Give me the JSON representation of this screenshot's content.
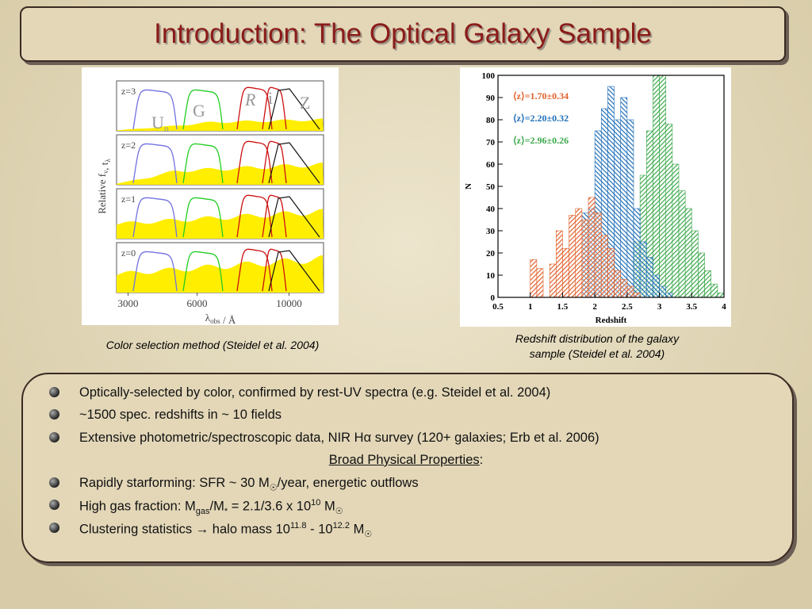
{
  "title": "Introduction: The Optical Galaxy Sample",
  "left_figure": {
    "panel_labels": [
      "z=3",
      "z=2",
      "z=1",
      "z=0"
    ],
    "filter_labels": [
      {
        "t": "U",
        "sub": "n"
      },
      {
        "t": "G"
      },
      {
        "t": "R"
      },
      {
        "t": "i"
      },
      {
        "t": "Z"
      }
    ],
    "y_label": [
      {
        "t": "Relative f"
      },
      {
        "sub": "ν"
      },
      {
        "t": ", t"
      },
      {
        "sub": "λ"
      }
    ],
    "x_label": [
      {
        "t": "λ"
      },
      {
        "sub": "obs"
      },
      {
        "t": " / Å"
      }
    ],
    "xticks": [
      3000,
      6000,
      10000
    ],
    "caption": "Color selection method (Steidel et al. 2004)"
  },
  "right_figure": {
    "type": "histogram",
    "x_label": "Redshift",
    "y_label": "N",
    "xlim": [
      0.5,
      4
    ],
    "ylim": [
      0,
      100
    ],
    "xticks": [
      0.5,
      1,
      1.5,
      2,
      2.5,
      3,
      3.5,
      4
    ],
    "yticks": [
      0,
      10,
      20,
      30,
      40,
      50,
      60,
      70,
      80,
      90,
      100
    ],
    "bins": [
      1,
      1.1,
      1.2,
      1.3,
      1.4,
      1.5,
      1.6,
      1.7,
      1.8,
      1.9,
      2,
      2.1,
      2.2,
      2.3,
      2.4,
      2.5,
      2.6,
      2.7,
      2.8,
      2.9,
      3,
      3.1,
      3.2,
      3.3,
      3.4,
      3.5,
      3.6,
      3.7,
      3.8,
      3.9,
      4
    ],
    "series": [
      {
        "name": "⟨z⟩=1.70±0.34",
        "color": "#e0602a",
        "values": [
          17,
          13,
          0,
          15,
          30,
          22,
          37,
          40,
          35,
          45,
          38,
          28,
          22,
          12,
          8,
          5,
          2,
          0,
          0,
          0,
          0,
          0,
          0,
          0,
          0,
          0,
          0,
          0,
          0,
          0
        ]
      },
      {
        "name": "⟨z⟩=2.20±0.32",
        "color": "#1f6fb8",
        "values": [
          0,
          0,
          0,
          0,
          0,
          0,
          0,
          0,
          38,
          40,
          75,
          85,
          95,
          80,
          90,
          80,
          40,
          25,
          18,
          10,
          5,
          2,
          0,
          0,
          0,
          0,
          0,
          0,
          0,
          0
        ]
      },
      {
        "name": "⟨z⟩=2.96±0.26",
        "color": "#3aa84a",
        "values": [
          0,
          0,
          0,
          0,
          0,
          0,
          0,
          0,
          0,
          0,
          0,
          0,
          0,
          0,
          0,
          0,
          25,
          55,
          75,
          100,
          100,
          78,
          60,
          48,
          40,
          30,
          20,
          12,
          6,
          2
        ]
      }
    ],
    "caption": [
      "Redshift distribution of the galaxy",
      "sample (Steidel et al. 2004)"
    ]
  },
  "bullets": [
    {
      "bullet": true,
      "parts": [
        {
          "t": "Optically-selected by color, confirmed by rest-UV spectra (e.g. Steidel et al. 2004)"
        }
      ]
    },
    {
      "bullet": true,
      "parts": [
        {
          "t": "~1500 spec. redshifts in ~ 10 fields"
        }
      ]
    },
    {
      "bullet": true,
      "parts": [
        {
          "t": "Extensive photometric/spectroscopic data, NIR Hα survey (120+ galaxies; Erb et al. 2006)"
        }
      ]
    },
    {
      "bullet": false,
      "parts": [
        {
          "u": "Broad Physical Properties"
        },
        {
          "t": ":"
        }
      ]
    },
    {
      "bullet": true,
      "parts": [
        {
          "t": "Rapidly starforming: SFR ~ 30 M"
        },
        {
          "sub": "☉"
        },
        {
          "t": "/year, energetic outflows"
        }
      ]
    },
    {
      "bullet": true,
      "parts": [
        {
          "t": "High gas fraction: M"
        },
        {
          "sub": "gas"
        },
        {
          "t": "/M"
        },
        {
          "sub": "*"
        },
        {
          "t": " = 2.1/3.6 x 10"
        },
        {
          "sup": "10"
        },
        {
          "t": " M"
        },
        {
          "sub": "☉"
        }
      ]
    },
    {
      "bullet": true,
      "parts": [
        {
          "t": "Clustering statistics → halo mass 10"
        },
        {
          "sup": "11.8"
        },
        {
          "t": " - 10"
        },
        {
          "sup": "12.2"
        },
        {
          "t": " M"
        },
        {
          "sub": "☉"
        }
      ]
    }
  ]
}
